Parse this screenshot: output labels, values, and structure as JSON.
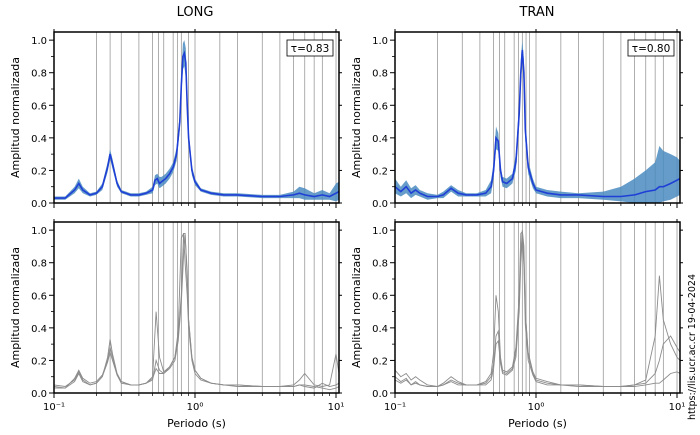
{
  "figure": {
    "col_titles": [
      "LONG",
      "TRAN"
    ],
    "credit": "https://lis.ucr.ac.cr 19-04-2024",
    "ylabel": "Amplitud normalizada",
    "xlabel": "Periodo (s)",
    "colors": {
      "band": "#4a8bbf",
      "mean_line": "#1f3fd6",
      "individual_line": "#8c8c8c",
      "gridline": "#9a9a9a"
    }
  },
  "chart_data": [
    {
      "type": "area",
      "panel": "top-left",
      "title": "LONG",
      "annotation": "τ=0.83",
      "xlabel": "",
      "ylabel": "Amplitud normalizada",
      "xscale": "log",
      "xlim": [
        0.1,
        10.5
      ],
      "ylim": [
        0,
        1.05
      ],
      "yticks": [
        0.0,
        0.2,
        0.4,
        0.6,
        0.8,
        1.0
      ],
      "vlines": [
        0.2,
        0.25,
        0.3,
        0.4,
        0.5,
        0.55,
        0.6,
        0.7,
        0.75,
        0.8,
        0.9,
        1.0,
        1.5,
        2.0,
        3.0,
        4.0,
        5.0,
        6.0,
        7.0,
        8.0,
        10.0
      ],
      "x": [
        0.1,
        0.12,
        0.14,
        0.15,
        0.16,
        0.18,
        0.2,
        0.22,
        0.24,
        0.25,
        0.26,
        0.28,
        0.3,
        0.35,
        0.4,
        0.45,
        0.5,
        0.52,
        0.54,
        0.56,
        0.58,
        0.62,
        0.66,
        0.7,
        0.74,
        0.78,
        0.8,
        0.82,
        0.84,
        0.86,
        0.88,
        0.9,
        0.95,
        1.0,
        1.1,
        1.3,
        1.6,
        2.0,
        3.0,
        4.0,
        5.0,
        5.5,
        6.0,
        7.0,
        8.0,
        9.0,
        10.0,
        10.5
      ],
      "series": [
        {
          "role": "mean",
          "values": [
            0.03,
            0.03,
            0.08,
            0.12,
            0.08,
            0.05,
            0.06,
            0.1,
            0.22,
            0.3,
            0.24,
            0.12,
            0.07,
            0.05,
            0.05,
            0.06,
            0.08,
            0.14,
            0.15,
            0.12,
            0.13,
            0.15,
            0.18,
            0.22,
            0.3,
            0.5,
            0.72,
            0.9,
            0.92,
            0.86,
            0.6,
            0.4,
            0.2,
            0.13,
            0.08,
            0.06,
            0.05,
            0.05,
            0.04,
            0.04,
            0.05,
            0.06,
            0.05,
            0.04,
            0.05,
            0.04,
            0.06,
            0.07
          ]
        },
        {
          "role": "upper",
          "values": [
            0.04,
            0.04,
            0.1,
            0.15,
            0.1,
            0.06,
            0.07,
            0.12,
            0.25,
            0.33,
            0.27,
            0.14,
            0.08,
            0.06,
            0.06,
            0.07,
            0.1,
            0.17,
            0.18,
            0.16,
            0.16,
            0.18,
            0.21,
            0.25,
            0.34,
            0.55,
            0.78,
            0.98,
            1.0,
            0.95,
            0.66,
            0.45,
            0.23,
            0.15,
            0.09,
            0.07,
            0.06,
            0.06,
            0.05,
            0.05,
            0.07,
            0.1,
            0.09,
            0.06,
            0.08,
            0.06,
            0.12,
            0.13
          ]
        },
        {
          "role": "lower",
          "values": [
            0.02,
            0.02,
            0.06,
            0.09,
            0.06,
            0.04,
            0.05,
            0.08,
            0.19,
            0.27,
            0.21,
            0.1,
            0.06,
            0.04,
            0.04,
            0.05,
            0.06,
            0.11,
            0.12,
            0.09,
            0.1,
            0.12,
            0.15,
            0.19,
            0.26,
            0.45,
            0.66,
            0.82,
            0.84,
            0.77,
            0.54,
            0.35,
            0.17,
            0.11,
            0.07,
            0.05,
            0.04,
            0.04,
            0.03,
            0.03,
            0.03,
            0.03,
            0.02,
            0.02,
            0.02,
            0.02,
            0.01,
            0.02
          ]
        }
      ]
    },
    {
      "type": "area",
      "panel": "top-right",
      "title": "TRAN",
      "annotation": "τ=0.80",
      "xlabel": "",
      "ylabel": "Amplitud normalizada",
      "xscale": "log",
      "xlim": [
        0.1,
        10.5
      ],
      "ylim": [
        0,
        1.05
      ],
      "yticks": [
        0.0,
        0.2,
        0.4,
        0.6,
        0.8,
        1.0
      ],
      "vlines": [
        0.2,
        0.3,
        0.4,
        0.5,
        0.55,
        0.6,
        0.7,
        0.75,
        0.8,
        0.85,
        0.9,
        1.0,
        1.5,
        2.0,
        3.0,
        4.0,
        5.0,
        6.0,
        7.0,
        8.0,
        10.0
      ],
      "x": [
        0.1,
        0.11,
        0.12,
        0.13,
        0.14,
        0.15,
        0.17,
        0.2,
        0.22,
        0.25,
        0.28,
        0.32,
        0.38,
        0.44,
        0.48,
        0.5,
        0.52,
        0.54,
        0.56,
        0.58,
        0.62,
        0.68,
        0.72,
        0.76,
        0.78,
        0.8,
        0.82,
        0.84,
        0.88,
        0.95,
        1.0,
        1.2,
        1.5,
        2.0,
        3.0,
        4.0,
        5.0,
        6.0,
        7.0,
        7.5,
        8.0,
        9.0,
        10.0,
        10.5
      ],
      "series": [
        {
          "role": "mean",
          "values": [
            0.1,
            0.07,
            0.1,
            0.06,
            0.08,
            0.06,
            0.04,
            0.04,
            0.05,
            0.09,
            0.06,
            0.05,
            0.05,
            0.06,
            0.1,
            0.2,
            0.4,
            0.38,
            0.2,
            0.13,
            0.12,
            0.15,
            0.25,
            0.55,
            0.8,
            0.94,
            0.8,
            0.45,
            0.22,
            0.12,
            0.08,
            0.06,
            0.05,
            0.05,
            0.04,
            0.04,
            0.05,
            0.07,
            0.08,
            0.1,
            0.1,
            0.12,
            0.14,
            0.15
          ]
        },
        {
          "role": "upper",
          "values": [
            0.15,
            0.1,
            0.14,
            0.09,
            0.11,
            0.08,
            0.06,
            0.05,
            0.07,
            0.11,
            0.08,
            0.06,
            0.06,
            0.08,
            0.14,
            0.25,
            0.47,
            0.43,
            0.23,
            0.16,
            0.15,
            0.18,
            0.3,
            0.62,
            0.88,
            1.0,
            0.88,
            0.52,
            0.26,
            0.15,
            0.1,
            0.08,
            0.07,
            0.06,
            0.07,
            0.1,
            0.15,
            0.2,
            0.25,
            0.35,
            0.32,
            0.3,
            0.28,
            0.26
          ]
        },
        {
          "role": "lower",
          "values": [
            0.06,
            0.04,
            0.06,
            0.03,
            0.05,
            0.04,
            0.02,
            0.03,
            0.03,
            0.07,
            0.04,
            0.04,
            0.04,
            0.04,
            0.06,
            0.15,
            0.33,
            0.32,
            0.16,
            0.1,
            0.09,
            0.12,
            0.2,
            0.48,
            0.72,
            0.87,
            0.72,
            0.38,
            0.18,
            0.09,
            0.06,
            0.04,
            0.03,
            0.03,
            0.02,
            0.01,
            0.0,
            0.0,
            0.0,
            0.0,
            0.01,
            0.02,
            0.04,
            0.05
          ]
        }
      ]
    },
    {
      "type": "line",
      "panel": "bottom-left",
      "title": "",
      "xlabel": "Periodo (s)",
      "ylabel": "Amplitud normalizada",
      "xscale": "log",
      "xlim": [
        0.1,
        10.5
      ],
      "ylim": [
        0,
        1.05
      ],
      "xticks": [
        "10⁻¹",
        "10⁰",
        "10¹"
      ],
      "yticks": [
        0.0,
        0.2,
        0.4,
        0.6,
        0.8,
        1.0
      ],
      "vlines": [
        0.2,
        0.25,
        0.3,
        0.4,
        0.5,
        0.55,
        0.6,
        0.7,
        0.75,
        0.8,
        0.9,
        1.0,
        1.5,
        2.0,
        3.0,
        4.0,
        5.0,
        6.0,
        7.0,
        8.0,
        10.0
      ],
      "x": [
        0.1,
        0.12,
        0.14,
        0.15,
        0.16,
        0.18,
        0.2,
        0.22,
        0.24,
        0.25,
        0.26,
        0.28,
        0.3,
        0.35,
        0.4,
        0.45,
        0.5,
        0.53,
        0.56,
        0.6,
        0.66,
        0.72,
        0.76,
        0.8,
        0.83,
        0.85,
        0.88,
        0.9,
        0.95,
        1.0,
        1.1,
        1.3,
        1.6,
        2.0,
        3.0,
        4.0,
        5.0,
        5.5,
        6.0,
        7.0,
        8.0,
        9.0,
        10.0,
        10.5
      ],
      "series": [
        {
          "role": "individual",
          "values": [
            0.03,
            0.03,
            0.07,
            0.12,
            0.07,
            0.05,
            0.06,
            0.1,
            0.22,
            0.33,
            0.24,
            0.12,
            0.07,
            0.05,
            0.05,
            0.06,
            0.08,
            0.2,
            0.14,
            0.12,
            0.16,
            0.22,
            0.35,
            0.6,
            0.98,
            0.98,
            0.7,
            0.45,
            0.22,
            0.14,
            0.09,
            0.06,
            0.05,
            0.05,
            0.04,
            0.04,
            0.05,
            0.08,
            0.12,
            0.05,
            0.04,
            0.05,
            0.24,
            0.12
          ]
        },
        {
          "role": "individual",
          "values": [
            0.04,
            0.03,
            0.09,
            0.14,
            0.09,
            0.06,
            0.07,
            0.11,
            0.2,
            0.28,
            0.22,
            0.11,
            0.06,
            0.05,
            0.05,
            0.06,
            0.09,
            0.15,
            0.12,
            0.12,
            0.15,
            0.2,
            0.32,
            0.55,
            0.85,
            0.97,
            0.75,
            0.45,
            0.22,
            0.14,
            0.09,
            0.06,
            0.05,
            0.05,
            0.04,
            0.04,
            0.04,
            0.05,
            0.04,
            0.03,
            0.06,
            0.04,
            0.05,
            0.06
          ]
        },
        {
          "role": "individual",
          "values": [
            0.05,
            0.04,
            0.08,
            0.13,
            0.08,
            0.05,
            0.06,
            0.1,
            0.19,
            0.25,
            0.2,
            0.11,
            0.07,
            0.05,
            0.05,
            0.06,
            0.1,
            0.5,
            0.22,
            0.13,
            0.16,
            0.22,
            0.38,
            0.95,
            0.98,
            0.8,
            0.6,
            0.4,
            0.2,
            0.12,
            0.08,
            0.06,
            0.05,
            0.04,
            0.04,
            0.04,
            0.04,
            0.05,
            0.05,
            0.04,
            0.03,
            0.02,
            0.03,
            0.04
          ]
        }
      ]
    },
    {
      "type": "line",
      "panel": "bottom-right",
      "title": "",
      "xlabel": "Periodo (s)",
      "ylabel": "Amplitud normalizada",
      "xscale": "log",
      "xlim": [
        0.1,
        10.5
      ],
      "ylim": [
        0,
        1.05
      ],
      "xticks": [
        "10⁻¹",
        "10⁰",
        "10¹"
      ],
      "yticks": [
        0.0,
        0.2,
        0.4,
        0.6,
        0.8,
        1.0
      ],
      "vlines": [
        0.2,
        0.3,
        0.4,
        0.5,
        0.55,
        0.6,
        0.7,
        0.75,
        0.8,
        0.85,
        0.9,
        1.0,
        1.5,
        2.0,
        3.0,
        4.0,
        5.0,
        6.0,
        7.0,
        8.0,
        10.0
      ],
      "x": [
        0.1,
        0.11,
        0.12,
        0.13,
        0.14,
        0.15,
        0.17,
        0.2,
        0.22,
        0.25,
        0.28,
        0.32,
        0.38,
        0.44,
        0.48,
        0.5,
        0.52,
        0.54,
        0.56,
        0.58,
        0.62,
        0.68,
        0.72,
        0.76,
        0.78,
        0.8,
        0.82,
        0.84,
        0.88,
        0.95,
        1.0,
        1.2,
        1.5,
        2.0,
        3.0,
        4.0,
        5.0,
        6.0,
        7.0,
        7.5,
        8.0,
        9.0,
        10.0,
        10.5
      ],
      "series": [
        {
          "role": "individual",
          "values": [
            0.14,
            0.1,
            0.12,
            0.08,
            0.1,
            0.08,
            0.05,
            0.04,
            0.06,
            0.1,
            0.07,
            0.05,
            0.05,
            0.07,
            0.12,
            0.25,
            0.6,
            0.5,
            0.22,
            0.14,
            0.13,
            0.16,
            0.28,
            0.6,
            0.98,
            0.99,
            0.85,
            0.5,
            0.25,
            0.13,
            0.09,
            0.07,
            0.05,
            0.05,
            0.04,
            0.04,
            0.05,
            0.08,
            0.35,
            0.72,
            0.45,
            0.3,
            0.22,
            0.2
          ]
        },
        {
          "role": "individual",
          "values": [
            0.1,
            0.07,
            0.09,
            0.05,
            0.07,
            0.05,
            0.04,
            0.04,
            0.05,
            0.08,
            0.06,
            0.05,
            0.05,
            0.06,
            0.1,
            0.18,
            0.35,
            0.38,
            0.2,
            0.13,
            0.12,
            0.15,
            0.25,
            0.55,
            0.85,
            1.0,
            0.9,
            0.5,
            0.23,
            0.12,
            0.08,
            0.06,
            0.05,
            0.05,
            0.04,
            0.04,
            0.05,
            0.06,
            0.12,
            0.2,
            0.3,
            0.35,
            0.28,
            0.25
          ]
        },
        {
          "role": "individual",
          "values": [
            0.08,
            0.06,
            0.08,
            0.05,
            0.06,
            0.05,
            0.04,
            0.04,
            0.05,
            0.07,
            0.05,
            0.05,
            0.05,
            0.05,
            0.08,
            0.15,
            0.3,
            0.32,
            0.18,
            0.12,
            0.11,
            0.14,
            0.22,
            0.5,
            0.8,
            0.95,
            0.78,
            0.42,
            0.2,
            0.11,
            0.07,
            0.05,
            0.05,
            0.04,
            0.04,
            0.04,
            0.04,
            0.05,
            0.06,
            0.06,
            0.08,
            0.12,
            0.13,
            0.12
          ]
        }
      ]
    }
  ]
}
